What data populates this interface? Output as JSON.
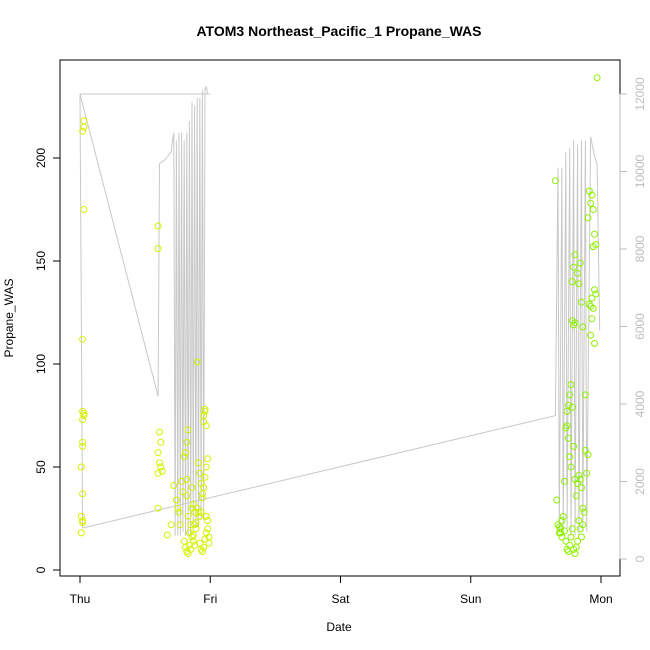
{
  "chart_data": {
    "type": "scatter",
    "title": "ATOM3 Northeast_Pacific_1 Propane_WAS",
    "xlabel": "Date",
    "ylabel": "Propane_WAS",
    "x_ticks": [
      {
        "label": "Thu",
        "day": 0
      },
      {
        "label": "Fri",
        "day": 1
      },
      {
        "label": "Sat",
        "day": 2
      },
      {
        "label": "Sun",
        "day": 3
      },
      {
        "label": "Mon",
        "day": 4
      }
    ],
    "x_unit": "day (Thu 00:00 = 0)",
    "xlim": [
      -0.2,
      4.2
    ],
    "ylim": [
      0,
      235
    ],
    "y_ticks": [
      0,
      50,
      100,
      150,
      200
    ],
    "y2_ticks": [
      0,
      2000,
      4000,
      6000,
      8000,
      10000,
      12000
    ],
    "y2lim": [
      -300,
      12500
    ],
    "grid": false,
    "colors": {
      "points_thu": "#d8f000",
      "points_fri": "#d2f200",
      "points_mon": "#8ef000",
      "line": "#c8c8c8",
      "right_axis": "#bdbdbd"
    },
    "series": [
      {
        "marker": "circle-open",
        "points_thu": [
          [
            0.01,
            18
          ],
          [
            0.02,
            23
          ],
          [
            0.01,
            26
          ],
          [
            0.02,
            24
          ],
          [
            0.02,
            37
          ],
          [
            0.01,
            50
          ],
          [
            0.02,
            60
          ],
          [
            0.02,
            62
          ],
          [
            0.02,
            73
          ],
          [
            0.03,
            75
          ],
          [
            0.02,
            77
          ],
          [
            0.03,
            76
          ],
          [
            0.02,
            112
          ],
          [
            0.03,
            175
          ],
          [
            0.02,
            213
          ],
          [
            0.03,
            215
          ],
          [
            0.03,
            218
          ]
        ],
        "points_fri": [
          [
            0.6,
            167
          ],
          [
            0.6,
            156
          ],
          [
            0.61,
            67
          ],
          [
            0.62,
            62
          ],
          [
            0.6,
            57
          ],
          [
            0.61,
            52
          ],
          [
            0.62,
            50
          ],
          [
            0.6,
            47
          ],
          [
            0.63,
            48
          ],
          [
            0.6,
            30
          ],
          [
            0.67,
            17
          ],
          [
            0.7,
            22
          ],
          [
            0.72,
            41
          ],
          [
            0.74,
            34
          ],
          [
            0.75,
            30
          ],
          [
            0.76,
            28
          ],
          [
            0.77,
            22
          ],
          [
            0.78,
            43
          ],
          [
            0.79,
            38
          ],
          [
            0.8,
            55
          ],
          [
            0.81,
            57
          ],
          [
            0.82,
            44
          ],
          [
            0.82,
            36
          ],
          [
            0.83,
            26
          ],
          [
            0.8,
            14
          ],
          [
            0.81,
            11
          ],
          [
            0.82,
            9
          ],
          [
            0.83,
            8
          ],
          [
            0.84,
            12
          ],
          [
            0.85,
            10
          ],
          [
            0.86,
            16
          ],
          [
            0.87,
            14
          ],
          [
            0.88,
            12
          ],
          [
            0.82,
            62
          ],
          [
            0.83,
            68
          ],
          [
            0.86,
            30
          ],
          [
            0.87,
            32
          ],
          [
            0.88,
            28
          ],
          [
            0.89,
            20
          ],
          [
            0.9,
            101
          ],
          [
            0.91,
            52
          ],
          [
            0.92,
            47
          ],
          [
            0.93,
            42
          ],
          [
            0.94,
            37
          ],
          [
            0.95,
            75
          ],
          [
            0.96,
            78
          ],
          [
            0.96,
            77
          ],
          [
            0.95,
            72
          ],
          [
            0.97,
            70
          ],
          [
            0.92,
            13
          ],
          [
            0.93,
            10
          ],
          [
            0.94,
            9
          ],
          [
            0.95,
            11
          ],
          [
            0.96,
            15
          ],
          [
            0.97,
            18
          ],
          [
            0.98,
            20
          ],
          [
            0.99,
            16
          ],
          [
            0.99,
            13
          ],
          [
            0.98,
            24
          ],
          [
            0.97,
            26
          ],
          [
            0.9,
            30
          ],
          [
            0.91,
            28
          ],
          [
            0.89,
            23
          ],
          [
            0.88,
            22
          ],
          [
            0.92,
            26
          ],
          [
            0.93,
            28
          ],
          [
            0.94,
            35
          ],
          [
            0.95,
            40
          ],
          [
            0.96,
            45
          ],
          [
            0.97,
            50
          ],
          [
            0.98,
            54
          ],
          [
            0.86,
            40
          ],
          [
            0.84,
            18
          ],
          [
            0.85,
            22
          ],
          [
            0.87,
            17
          ]
        ],
        "points_mon": [
          [
            3.65,
            189
          ],
          [
            3.66,
            34
          ],
          [
            3.67,
            22
          ],
          [
            3.68,
            18
          ],
          [
            3.69,
            20
          ],
          [
            3.7,
            24
          ],
          [
            3.71,
            26
          ],
          [
            3.72,
            19
          ],
          [
            3.73,
            14
          ],
          [
            3.74,
            10
          ],
          [
            3.75,
            9
          ],
          [
            3.76,
            12
          ],
          [
            3.77,
            16
          ],
          [
            3.78,
            20
          ],
          [
            3.79,
            10
          ],
          [
            3.8,
            8
          ],
          [
            3.81,
            11
          ],
          [
            3.82,
            14
          ],
          [
            3.72,
            43
          ],
          [
            3.73,
            69
          ],
          [
            3.74,
            70
          ],
          [
            3.75,
            64
          ],
          [
            3.76,
            55
          ],
          [
            3.77,
            50
          ],
          [
            3.74,
            77
          ],
          [
            3.75,
            80
          ],
          [
            3.76,
            85
          ],
          [
            3.77,
            90
          ],
          [
            3.78,
            79
          ],
          [
            3.79,
            60
          ],
          [
            3.8,
            44
          ],
          [
            3.81,
            36
          ],
          [
            3.82,
            42
          ],
          [
            3.83,
            46
          ],
          [
            3.84,
            44
          ],
          [
            3.85,
            40
          ],
          [
            3.86,
            30
          ],
          [
            3.87,
            28
          ],
          [
            3.78,
            121
          ],
          [
            3.79,
            119
          ],
          [
            3.8,
            120
          ],
          [
            3.78,
            140
          ],
          [
            3.79,
            147
          ],
          [
            3.8,
            153
          ],
          [
            3.82,
            144
          ],
          [
            3.83,
            139
          ],
          [
            3.84,
            149
          ],
          [
            3.85,
            130
          ],
          [
            3.86,
            118
          ],
          [
            3.88,
            85
          ],
          [
            3.89,
            47
          ],
          [
            3.9,
            56
          ],
          [
            3.88,
            58
          ],
          [
            3.9,
            171
          ],
          [
            3.91,
            184
          ],
          [
            3.92,
            178
          ],
          [
            3.93,
            182
          ],
          [
            3.94,
            175
          ],
          [
            3.95,
            163
          ],
          [
            3.94,
            157
          ],
          [
            3.96,
            158
          ],
          [
            3.91,
            129
          ],
          [
            3.92,
            128
          ],
          [
            3.93,
            132
          ],
          [
            3.94,
            127
          ],
          [
            3.95,
            136
          ],
          [
            3.96,
            134
          ],
          [
            3.92,
            114
          ],
          [
            3.93,
            122
          ],
          [
            3.95,
            110
          ],
          [
            3.97,
            239
          ],
          [
            3.85,
            16
          ],
          [
            3.84,
            20
          ],
          [
            3.83,
            24
          ],
          [
            3.86,
            22
          ],
          [
            3.7,
            16
          ],
          [
            3.69,
            18
          ],
          [
            3.68,
            21
          ]
        ],
        "line_y2": [
          [
            0.0,
            12000
          ],
          [
            1.0,
            12000
          ],
          [
            0.98,
            12000
          ],
          [
            0.97,
            12200
          ],
          [
            0.96,
            12100
          ],
          [
            0.95,
            1000
          ],
          [
            0.94,
            12100
          ],
          [
            0.93,
            1000
          ],
          [
            0.92,
            11900
          ],
          [
            0.91,
            800
          ],
          [
            0.9,
            11900
          ],
          [
            0.89,
            800
          ],
          [
            0.88,
            11700
          ],
          [
            0.87,
            800
          ],
          [
            0.86,
            11800
          ],
          [
            0.85,
            600
          ],
          [
            0.84,
            11300
          ],
          [
            0.83,
            600
          ],
          [
            0.82,
            11000
          ],
          [
            0.81,
            600
          ],
          [
            0.8,
            10800
          ],
          [
            0.79,
            700
          ],
          [
            0.78,
            11000
          ],
          [
            0.77,
            600
          ],
          [
            0.76,
            11000
          ],
          [
            0.75,
            600
          ],
          [
            0.74,
            10800
          ],
          [
            0.73,
            600
          ],
          [
            0.72,
            11000
          ],
          [
            0.71,
            10800
          ],
          [
            0.7,
            10500
          ],
          [
            0.65,
            10300
          ],
          [
            0.61,
            10200
          ],
          [
            0.6,
            4200
          ],
          [
            0.0,
            12000
          ],
          [
            0.02,
            800
          ],
          [
            3.65,
            3700
          ],
          [
            3.67,
            10100
          ],
          [
            3.68,
            700
          ],
          [
            3.7,
            10100
          ],
          [
            3.71,
            800
          ],
          [
            3.73,
            10500
          ],
          [
            3.74,
            800
          ],
          [
            3.76,
            10600
          ],
          [
            3.77,
            600
          ],
          [
            3.79,
            10800
          ],
          [
            3.8,
            600
          ],
          [
            3.82,
            10700
          ],
          [
            3.83,
            600
          ],
          [
            3.85,
            10800
          ],
          [
            3.86,
            700
          ],
          [
            3.88,
            10800
          ],
          [
            3.89,
            700
          ],
          [
            3.92,
            10900
          ],
          [
            3.95,
            10400
          ],
          [
            3.97,
            10200
          ],
          [
            3.99,
            5900
          ]
        ]
      }
    ]
  }
}
